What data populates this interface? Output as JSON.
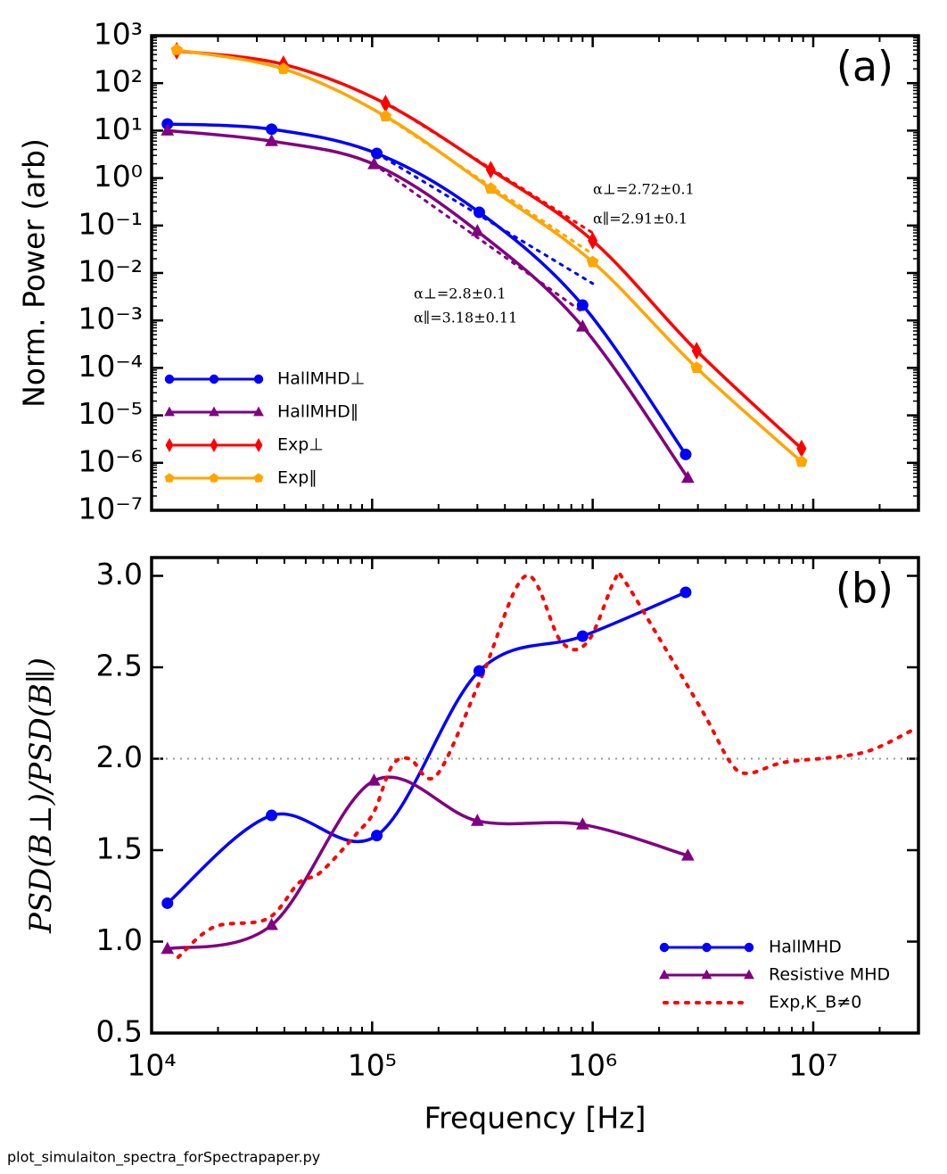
{
  "chart_data": [
    {
      "type": "line",
      "panel_label": "(a)",
      "ylabel": "Norm. Power (arb)",
      "xscale": "log",
      "yscale": "log",
      "xlim": [
        10000,
        30000000
      ],
      "ylim": [
        1e-07,
        1000
      ],
      "xticks": [
        10000,
        100000,
        1000000,
        10000000
      ],
      "yticks": [
        {
          "value": 1e-07,
          "label": "10⁻⁷"
        },
        {
          "value": 1e-06,
          "label": "10⁻⁶"
        },
        {
          "value": 1e-05,
          "label": "10⁻⁵"
        },
        {
          "value": 0.0001,
          "label": "10⁻⁴"
        },
        {
          "value": 0.001,
          "label": "10⁻³"
        },
        {
          "value": 0.01,
          "label": "10⁻²"
        },
        {
          "value": 0.1,
          "label": "10⁻¹"
        },
        {
          "value": 1,
          "label": "10⁰"
        },
        {
          "value": 10,
          "label": "10¹"
        },
        {
          "value": 100,
          "label": "10²"
        },
        {
          "value": 1000,
          "label": "10³"
        }
      ],
      "legend": "lower left",
      "series": [
        {
          "name": "HallMHD⊥",
          "color": "#0000ff",
          "marker": "circle",
          "x": [
            11800,
            35000,
            105000,
            306000,
            900000,
            2640000
          ],
          "values": [
            13.8,
            10.7,
            3.3,
            0.19,
            0.0021,
            1.5e-06
          ]
        },
        {
          "name": "HallMHD∥",
          "color": "#800080",
          "marker": "triangle",
          "x": [
            11800,
            35000,
            102000,
            300000,
            900000,
            2700000
          ],
          "values": [
            10,
            6,
            1.95,
            0.076,
            0.00074,
            4.8e-07
          ]
        },
        {
          "name": "Exp⊥",
          "color": "#ff0000",
          "marker": "diamond",
          "x": [
            13000,
            39600,
            115000,
            345000,
            1000000,
            2960000,
            8850000
          ],
          "values": [
            480,
            250,
            37,
            1.5,
            0.048,
            0.00023,
            2e-06
          ]
        },
        {
          "name": "Exp∥",
          "color": "#ffa500",
          "marker": "pentagon",
          "x": [
            13000,
            39600,
            115000,
            345000,
            1000000,
            2960000,
            8850000
          ],
          "values": [
            500,
            200,
            20,
            0.6,
            0.017,
            0.0001,
            1.05e-06
          ]
        }
      ],
      "fits": [
        {
          "color": "#0000ff",
          "x": [
            105000,
            1000000
          ],
          "values": [
            3.3,
            0.006
          ]
        },
        {
          "color": "#800080",
          "x": [
            102000,
            900000
          ],
          "values": [
            1.95,
            0.0015
          ]
        },
        {
          "color": "#ff0000",
          "x": [
            115000,
            1000000
          ],
          "values": [
            40,
            0.07
          ]
        },
        {
          "color": "#ffa500",
          "x": [
            115000,
            1000000
          ],
          "values": [
            20,
            0.025
          ]
        }
      ],
      "annotations": [
        {
          "text": "α⊥=2.72±0.1",
          "color": "#ff0000"
        },
        {
          "text": "α∥=2.91±0.1",
          "color": "#ffa500"
        },
        {
          "text": "α⊥=2.8±0.1",
          "color": "#0000ff"
        },
        {
          "text": "α∥=3.18±0.11",
          "color": "#800080"
        }
      ]
    },
    {
      "type": "line",
      "panel_label": "(b)",
      "ylabel": "PSD(B⊥)/PSD(B∥)",
      "xlabel": "Frequency [Hz]",
      "xscale": "log",
      "xlim": [
        10000,
        30000000
      ],
      "ylim": [
        0.5,
        3.1
      ],
      "xticks": [
        {
          "value": 10000,
          "label": "10⁴"
        },
        {
          "value": 100000,
          "label": "10⁵"
        },
        {
          "value": 1000000,
          "label": "10⁶"
        },
        {
          "value": 10000000,
          "label": "10⁷"
        }
      ],
      "yticks": [
        0.5,
        {
          "value": 1,
          "label": "1.0"
        },
        1.5,
        {
          "value": 2,
          "label": "2.0"
        },
        2.5,
        {
          "value": 3,
          "label": "3.0"
        }
      ],
      "hline": 2,
      "legend": "lower right",
      "series": [
        {
          "name": "HallMHD",
          "color": "#0000ff",
          "marker": "circle",
          "x": [
            11800,
            35000,
            105000,
            306000,
            900000,
            2640000
          ],
          "values": [
            1.21,
            1.69,
            1.58,
            2.48,
            2.67,
            2.91
          ]
        },
        {
          "name": "Resistive MHD",
          "color": "#800080",
          "marker": "triangle",
          "x": [
            11800,
            35000,
            102000,
            300000,
            900000,
            2700000
          ],
          "values": [
            0.96,
            1.09,
            1.88,
            1.66,
            1.64,
            1.47
          ]
        },
        {
          "name": "Exp,K_B≠0",
          "color": "#ff0000",
          "marker": "none",
          "dotted": true,
          "x": [
            13200,
            19200,
            33500,
            46400,
            58500,
            85000,
            102000,
            123000,
            148000,
            196000,
            312000,
            497000,
            720000,
            950000,
            1260000,
            1380000,
            2000000,
            3180000,
            4210000,
            5070000,
            7350000,
            12800000,
            18600000,
            29600000
          ],
          "values": [
            0.915,
            1.08,
            1.125,
            1.32,
            1.38,
            1.59,
            1.71,
            1.96,
            2.0,
            1.91,
            2.44,
            3.0,
            2.64,
            2.64,
            2.98,
            2.98,
            2.66,
            2.25,
            1.98,
            1.92,
            1.98,
            2.01,
            2.05,
            2.17
          ]
        }
      ]
    }
  ],
  "footer": "plot_simulaiton_spectra_forSpectrapaper.py"
}
